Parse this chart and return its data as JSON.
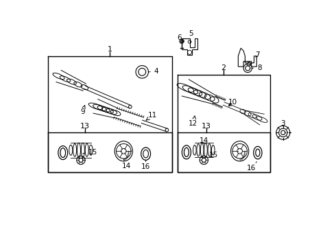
{
  "bg_color": "#ffffff",
  "fig_width": 4.9,
  "fig_height": 3.6,
  "dpi": 100
}
